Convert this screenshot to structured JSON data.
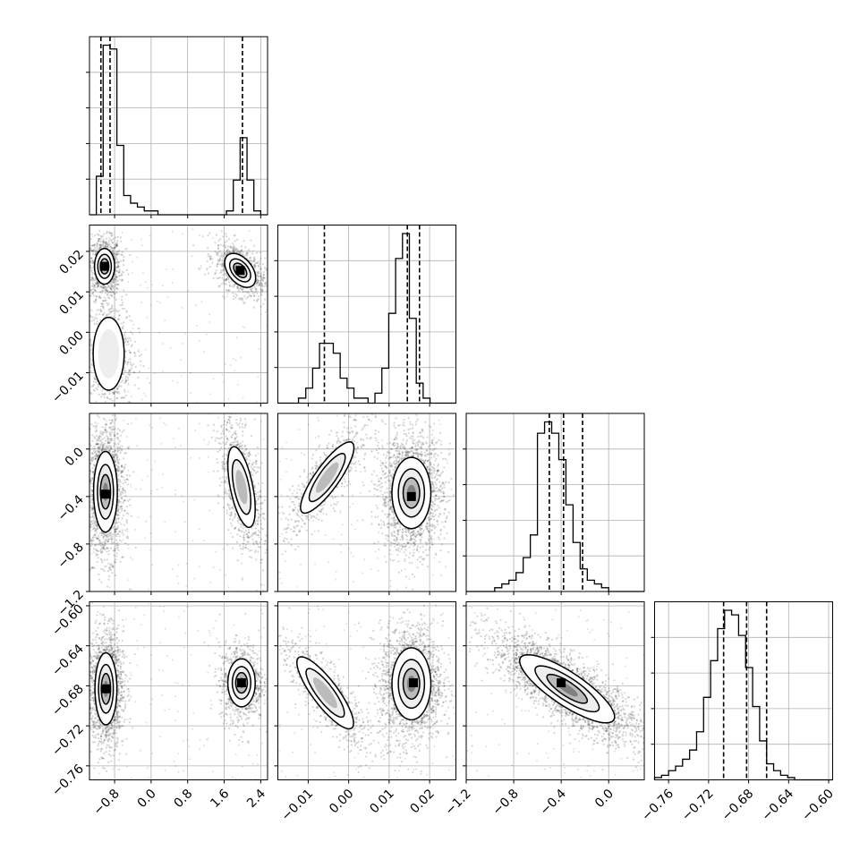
{
  "figure": {
    "type": "corner_plot",
    "background": "#ffffff",
    "line_color": "#000000",
    "grid_color": "#b0b0b0"
  },
  "parameters": [
    {
      "index": 0,
      "range": [
        -1.35,
        2.55
      ],
      "ticks": [
        -0.8,
        0.0,
        0.8,
        1.6,
        2.4
      ],
      "tick_labels": [
        "−0.8",
        "0.0",
        "0.8",
        "1.6",
        "2.4"
      ],
      "quantiles": [
        -1.1,
        -0.9,
        2.0
      ]
    },
    {
      "index": 1,
      "range": [
        -0.0175,
        0.0265
      ],
      "ticks": [
        -0.01,
        0.0,
        0.01,
        0.02
      ],
      "tick_labels": [
        "−0.01",
        "0.00",
        "0.01",
        "0.02"
      ],
      "quantiles": [
        -0.006,
        0.0145,
        0.0175
      ]
    },
    {
      "index": 2,
      "range": [
        -1.2,
        0.3
      ],
      "ticks": [
        -1.2,
        -0.8,
        -0.4,
        0.0
      ],
      "tick_labels": [
        "−1.2",
        "−0.8",
        "−0.4",
        "0.0"
      ],
      "quantiles": [
        -0.5,
        -0.38,
        -0.22
      ]
    },
    {
      "index": 3,
      "range": [
        -0.774,
        -0.596
      ],
      "ticks": [
        -0.76,
        -0.72,
        -0.68,
        -0.64,
        -0.6
      ],
      "tick_labels": [
        "−0.76",
        "−0.72",
        "−0.68",
        "−0.64",
        "−0.60"
      ],
      "quantiles": [
        -0.705,
        -0.682,
        -0.662
      ]
    }
  ],
  "chart_data": {
    "type": "corner",
    "title": "",
    "grid": true,
    "histograms": [
      {
        "param": 0,
        "bin_edges": [
          -1.35,
          -1.2,
          -1.05,
          -0.9,
          -0.75,
          -0.6,
          -0.45,
          -0.3,
          -0.15,
          0.0,
          0.15,
          0.3,
          0.45,
          0.6,
          0.75,
          0.9,
          1.05,
          1.2,
          1.35,
          1.5,
          1.65,
          1.8,
          1.95,
          2.1,
          2.25,
          2.4,
          2.55
        ],
        "counts": [
          0,
          10,
          44,
          43,
          18,
          5,
          3,
          2,
          1,
          1,
          0,
          0,
          0,
          0,
          0,
          0,
          0,
          0,
          0,
          0,
          1,
          9,
          20,
          9,
          1,
          0
        ]
      },
      {
        "param": 1,
        "bin_edges": [
          -0.0175,
          -0.0158,
          -0.0141,
          -0.0124,
          -0.0106,
          -0.0089,
          -0.0072,
          -0.0055,
          -0.0038,
          -0.0021,
          -0.0004,
          0.0013,
          0.003,
          0.0048,
          0.0065,
          0.0082,
          0.0099,
          0.0116,
          0.0133,
          0.015,
          0.0167,
          0.0184,
          0.0201,
          0.0218,
          0.0235,
          0.0248,
          0.0265
        ],
        "counts": [
          0,
          0,
          0,
          1,
          3,
          7,
          12,
          12,
          10,
          5,
          3,
          1,
          1,
          0,
          2,
          7,
          18,
          29,
          34,
          17,
          4,
          1,
          0,
          0,
          0,
          0
        ]
      },
      {
        "param": 2,
        "bin_edges": [
          -1.2,
          -1.14,
          -1.08,
          -1.02,
          -0.96,
          -0.9,
          -0.84,
          -0.78,
          -0.72,
          -0.66,
          -0.6,
          -0.54,
          -0.48,
          -0.42,
          -0.36,
          -0.3,
          -0.24,
          -0.18,
          -0.12,
          -0.06,
          0.0,
          0.06,
          0.12,
          0.18,
          0.24,
          0.3
        ],
        "counts": [
          0,
          0,
          0,
          0,
          1,
          2,
          3,
          5,
          9,
          15,
          42,
          45,
          42,
          35,
          23,
          13,
          6,
          3,
          2,
          1,
          0,
          0,
          0,
          0,
          0
        ]
      },
      {
        "param": 3,
        "bin_edges": [
          -0.774,
          -0.767,
          -0.76,
          -0.753,
          -0.746,
          -0.739,
          -0.732,
          -0.725,
          -0.718,
          -0.711,
          -0.704,
          -0.697,
          -0.69,
          -0.683,
          -0.676,
          -0.669,
          -0.662,
          -0.655,
          -0.648,
          -0.641,
          -0.634,
          -0.627,
          -0.62,
          -0.613,
          -0.606,
          -0.596
        ],
        "counts": [
          1,
          2,
          4,
          6,
          9,
          13,
          21,
          36,
          52,
          66,
          74,
          72,
          63,
          49,
          32,
          17,
          7,
          4,
          2,
          1,
          0,
          0,
          0,
          0,
          0
        ]
      }
    ],
    "scatter_panels": [
      {
        "x_param": 0,
        "y_param": 1,
        "clusters": [
          {
            "cx": -1.02,
            "cy": 0.0163,
            "sx": 0.11,
            "sy": 0.0022,
            "rho": 0.0,
            "weight": 0.39,
            "contour_levels": 3,
            "peak": [
              -1.02,
              0.0163
            ]
          },
          {
            "cx": 1.95,
            "cy": 0.0153,
            "sx": 0.17,
            "sy": 0.0021,
            "rho": -0.45,
            "weight": 0.33,
            "contour_levels": 3,
            "peak": [
              1.95,
              0.0153
            ]
          },
          {
            "cx": -0.93,
            "cy": -0.0053,
            "sx": 0.17,
            "sy": 0.0045,
            "rho": 0.0,
            "weight": 0.28,
            "contour_levels": 1
          }
        ]
      },
      {
        "x_param": 0,
        "y_param": 2,
        "clusters": [
          {
            "cx": -1.0,
            "cy": -0.36,
            "sx": 0.13,
            "sy": 0.17,
            "rho": 0.0,
            "weight": 0.64,
            "contour_levels": 3,
            "peak": [
              -1.0,
              -0.38
            ]
          },
          {
            "cx": 1.98,
            "cy": -0.32,
            "sx": 0.15,
            "sy": 0.17,
            "rho": -0.55,
            "weight": 0.36,
            "contour_levels": 2
          }
        ]
      },
      {
        "x_param": 0,
        "y_param": 3,
        "clusters": [
          {
            "cx": -0.99,
            "cy": -0.683,
            "sx": 0.12,
            "sy": 0.018,
            "rho": 0.0,
            "weight": 0.64,
            "contour_levels": 3,
            "peak": [
              -0.99,
              -0.683
            ]
          },
          {
            "cx": 1.98,
            "cy": -0.677,
            "sx": 0.15,
            "sy": 0.012,
            "rho": 0.0,
            "weight": 0.36,
            "contour_levels": 3,
            "peak": [
              1.98,
              -0.677
            ]
          }
        ]
      },
      {
        "x_param": 1,
        "y_param": 2,
        "clusters": [
          {
            "cx": -0.0053,
            "cy": -0.24,
            "sx": 0.0033,
            "sy": 0.15,
            "rho": 0.84,
            "weight": 0.28,
            "contour_levels": 2
          },
          {
            "cx": 0.0155,
            "cy": -0.37,
            "sx": 0.0024,
            "sy": 0.15,
            "rho": 0.0,
            "weight": 0.72,
            "contour_levels": 3,
            "peak": [
              0.0155,
              -0.4
            ]
          }
        ]
      },
      {
        "x_param": 1,
        "y_param": 3,
        "clusters": [
          {
            "cx": -0.0058,
            "cy": -0.687,
            "sx": 0.0035,
            "sy": 0.018,
            "rho": -0.84,
            "weight": 0.28,
            "contour_levels": 2
          },
          {
            "cx": 0.0155,
            "cy": -0.678,
            "sx": 0.0024,
            "sy": 0.018,
            "rho": 0.0,
            "weight": 0.72,
            "contour_levels": 3,
            "peak": [
              0.016,
              -0.677
            ]
          }
        ]
      },
      {
        "x_param": 2,
        "y_param": 3,
        "clusters": [
          {
            "cx": -0.35,
            "cy": -0.683,
            "sx": 0.2,
            "sy": 0.017,
            "rho": -0.82,
            "weight": 1.0,
            "contour_levels": 3,
            "peak": [
              -0.4,
              -0.677
            ]
          }
        ]
      }
    ]
  }
}
